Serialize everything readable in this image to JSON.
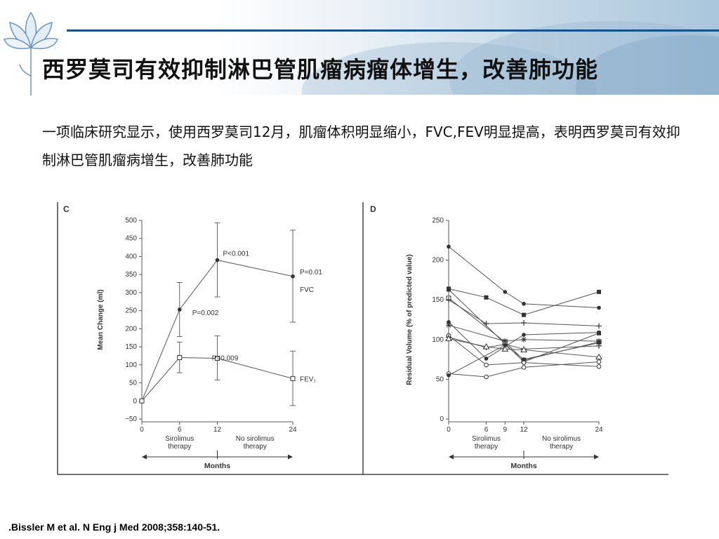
{
  "slide": {
    "title": "西罗莫司有效抑制淋巴管肌瘤病瘤体增生，改善肺功能",
    "body": "一项临床研究显示，使用西罗莫司12月，肌瘤体积明显缩小，FVC,FEV明显提高，表明西罗莫司有效抑制淋巴管肌瘤病增生，改善肺功能",
    "citation": ".Bissler M et  al. N Eng j Med 2008;358:140-51."
  },
  "decor": {
    "icons": [
      "lotus-icon"
    ],
    "colors": {
      "title_rule": "#1c4f86",
      "banner": "#aac6dc",
      "chart_line": "#555555"
    }
  },
  "chart_data": [
    {
      "panel_label": "C",
      "type": "line",
      "ylabel": "Mean Change (ml)",
      "xlabel": "Months",
      "x": [
        0,
        6,
        12,
        24
      ],
      "xticks": [
        0,
        6,
        12,
        24
      ],
      "ylim": [
        -50,
        500
      ],
      "yticks": [
        -50,
        0,
        50,
        100,
        150,
        200,
        250,
        300,
        350,
        400,
        450,
        500
      ],
      "grid": false,
      "phases": [
        {
          "label_lines": [
            "Sirolimus",
            "therapy"
          ],
          "from": 0,
          "to": 12
        },
        {
          "label_lines": [
            "No sirolimus",
            "therapy"
          ],
          "from": 12,
          "to": 24
        }
      ],
      "series": [
        {
          "name": "FVC",
          "marker": "filled-circle",
          "values": [
            0,
            253,
            390,
            345
          ],
          "err_low": [
            0,
            178,
            288,
            218
          ],
          "err_high": [
            0,
            328,
            493,
            473
          ]
        },
        {
          "name": "FEV₁",
          "marker": "open-square",
          "values": [
            0,
            120,
            118,
            62
          ],
          "err_low": [
            0,
            78,
            58,
            -13
          ],
          "err_high": [
            0,
            163,
            180,
            138
          ]
        }
      ],
      "annotations": [
        {
          "text": "P<0.001",
          "x": 12,
          "y": 390
        },
        {
          "text": "P=0.002",
          "x": 6,
          "y": 253
        },
        {
          "text": "P=0.01",
          "x": 24,
          "y": 345
        },
        {
          "text": "P=0.009",
          "x": 6,
          "y": 120
        }
      ]
    },
    {
      "panel_label": "D",
      "type": "line",
      "ylabel": "Residual Volume (% of predicted value)",
      "xlabel": "Months",
      "x": [
        0,
        6,
        9,
        12,
        24
      ],
      "xticks": [
        0,
        6,
        9,
        12,
        24
      ],
      "ylim": [
        0,
        250
      ],
      "yticks": [
        0,
        50,
        100,
        150,
        200,
        250
      ],
      "grid": false,
      "phases": [
        {
          "label_lines": [
            "Sirolimus",
            "therapy"
          ],
          "from": 0,
          "to": 12
        },
        {
          "label_lines": [
            "No sirolimus",
            "therapy"
          ],
          "from": 12,
          "to": 24
        }
      ],
      "series": [
        {
          "marker": "filled-circle",
          "values": [
            217,
            null,
            160,
            145,
            140
          ]
        },
        {
          "marker": "filled-square",
          "values": [
            164,
            153,
            null,
            131,
            160
          ]
        },
        {
          "marker": "filled-square",
          "values": [
            163,
            null,
            null,
            72,
            108
          ]
        },
        {
          "marker": "open-square",
          "values": [
            152,
            null,
            97,
            74,
            97
          ]
        },
        {
          "marker": "plus",
          "values": [
            150,
            120,
            null,
            121,
            117
          ]
        },
        {
          "marker": "filled-circle",
          "values": [
            122,
            76,
            null,
            106,
            109
          ]
        },
        {
          "marker": "star",
          "values": [
            118,
            null,
            98,
            100,
            98
          ]
        },
        {
          "marker": "open-circle",
          "values": [
            105,
            68,
            null,
            71,
            66
          ]
        },
        {
          "marker": "plus",
          "values": [
            103,
            90,
            94,
            88,
            92
          ]
        },
        {
          "marker": "triangle",
          "values": [
            101,
            91,
            88,
            87,
            78
          ]
        },
        {
          "marker": "open-circle",
          "values": [
            57,
            53,
            null,
            65,
            72
          ]
        },
        {
          "marker": "filled-circle",
          "values": [
            55,
            null,
            93,
            75,
            96
          ]
        }
      ]
    }
  ]
}
